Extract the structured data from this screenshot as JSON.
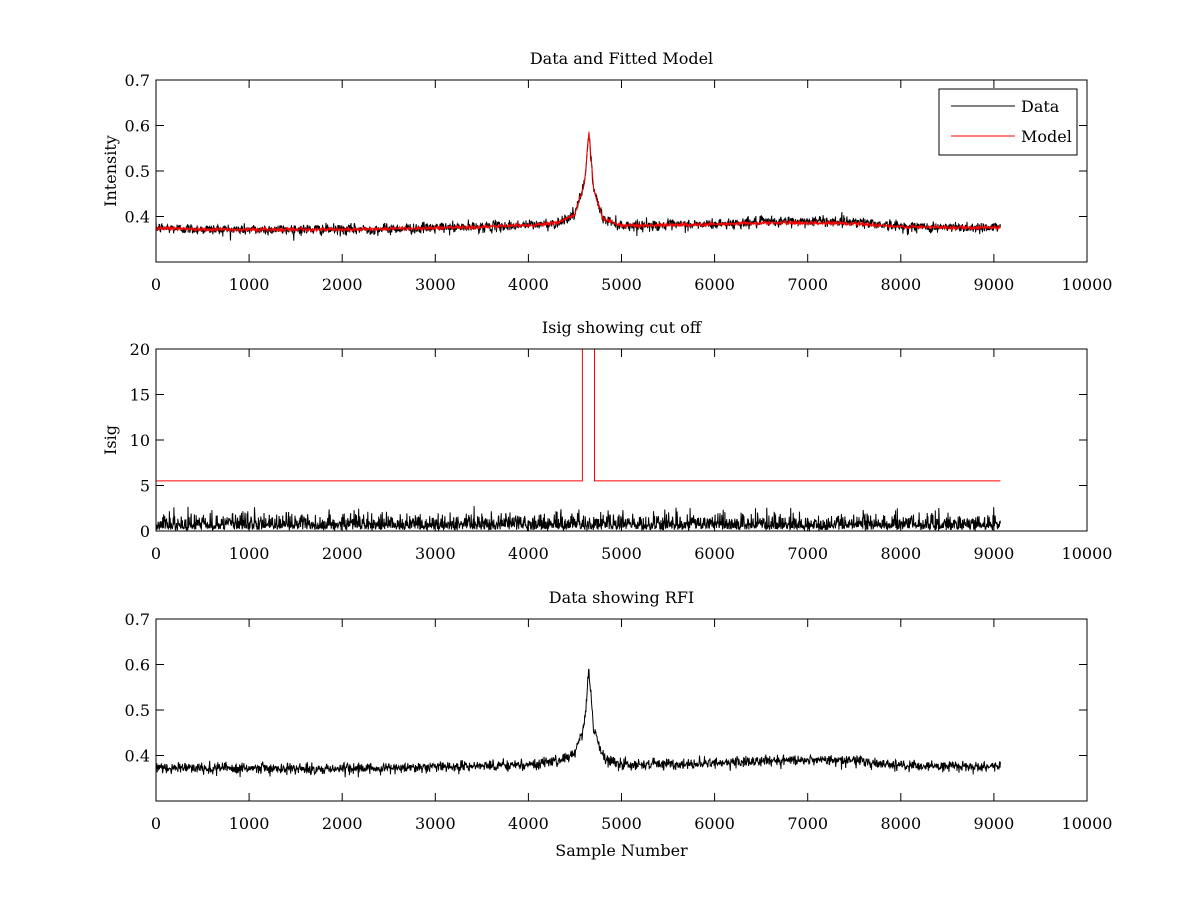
{
  "figure": {
    "background": "#ffffff"
  },
  "chart_data": [
    {
      "type": "line",
      "title": "Data and Fitted Model",
      "xlabel": "",
      "ylabel": "Intensity",
      "xlim": [
        0,
        10000
      ],
      "ylim": [
        0.3,
        0.7
      ],
      "xticks": [
        "0",
        "1000",
        "2000",
        "3000",
        "4000",
        "5000",
        "6000",
        "7000",
        "8000",
        "9000",
        "10000"
      ],
      "yticks": [
        "0.4",
        "0.5",
        "0.6",
        "0.7"
      ],
      "legend": {
        "position": "top-right",
        "entries": [
          "Data",
          "Model"
        ]
      },
      "series": [
        {
          "name": "Data",
          "color": "#000000",
          "x": [
            0,
            500,
            1000,
            1500,
            2000,
            2500,
            3000,
            3500,
            4000,
            4300,
            4500,
            4600,
            4650,
            4700,
            4800,
            5000,
            5500,
            6000,
            6500,
            7000,
            7500,
            8000,
            8500,
            9070
          ],
          "y": [
            0.375,
            0.372,
            0.371,
            0.372,
            0.371,
            0.373,
            0.375,
            0.377,
            0.381,
            0.385,
            0.405,
            0.47,
            0.585,
            0.46,
            0.395,
            0.38,
            0.381,
            0.383,
            0.388,
            0.39,
            0.389,
            0.378,
            0.376,
            0.376
          ],
          "noise": 0.006
        },
        {
          "name": "Model",
          "color": "#ff0000",
          "x": [
            0,
            500,
            1000,
            1500,
            2000,
            2500,
            3000,
            3500,
            4000,
            4300,
            4500,
            4600,
            4650,
            4700,
            4800,
            5000,
            5500,
            6000,
            6500,
            7000,
            7500,
            8000,
            8500,
            9070
          ],
          "y": [
            0.375,
            0.372,
            0.371,
            0.372,
            0.371,
            0.373,
            0.375,
            0.377,
            0.381,
            0.385,
            0.405,
            0.47,
            0.585,
            0.46,
            0.395,
            0.38,
            0.381,
            0.383,
            0.386,
            0.386,
            0.385,
            0.377,
            0.376,
            0.376
          ],
          "noise": 0.002
        }
      ]
    },
    {
      "type": "line",
      "title": "Isig showing cut off",
      "xlabel": "",
      "ylabel": "Isig",
      "xlim": [
        0,
        10000
      ],
      "ylim": [
        0,
        20
      ],
      "xticks": [
        "0",
        "1000",
        "2000",
        "3000",
        "4000",
        "5000",
        "6000",
        "7000",
        "8000",
        "9000",
        "10000"
      ],
      "yticks": [
        "0",
        "5",
        "10",
        "15",
        "20"
      ],
      "series": [
        {
          "color": "#ff0000",
          "x": [
            0,
            4580,
            4580,
            4710,
            4710,
            9070
          ],
          "y": [
            5.5,
            5.5,
            20,
            20,
            5.5,
            5.5
          ]
        },
        {
          "color": "#000000",
          "style": "noise",
          "x_range": [
            0,
            9070
          ],
          "y_min": 0,
          "y_max": 3.4
        }
      ]
    },
    {
      "type": "line",
      "title": "Data showing RFI",
      "xlabel": "Sample Number",
      "ylabel": "",
      "xlim": [
        0,
        10000
      ],
      "ylim": [
        0.3,
        0.7
      ],
      "xticks": [
        "0",
        "1000",
        "2000",
        "3000",
        "4000",
        "5000",
        "6000",
        "7000",
        "8000",
        "9000",
        "10000"
      ],
      "yticks": [
        "0.4",
        "0.5",
        "0.6",
        "0.7"
      ],
      "series": [
        {
          "color": "#000000",
          "x": [
            0,
            500,
            1000,
            1500,
            2000,
            2500,
            3000,
            3500,
            4000,
            4300,
            4500,
            4600,
            4650,
            4700,
            4800,
            5000,
            5500,
            6000,
            6500,
            7000,
            7500,
            8000,
            8500,
            9070
          ],
          "y": [
            0.375,
            0.372,
            0.371,
            0.372,
            0.371,
            0.373,
            0.375,
            0.377,
            0.381,
            0.385,
            0.405,
            0.47,
            0.585,
            0.46,
            0.395,
            0.38,
            0.381,
            0.383,
            0.388,
            0.39,
            0.389,
            0.378,
            0.376,
            0.376
          ],
          "noise": 0.006
        }
      ]
    }
  ]
}
